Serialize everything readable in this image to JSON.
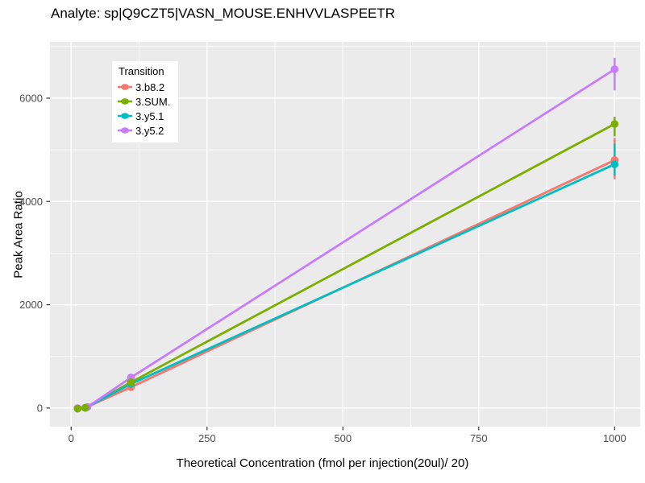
{
  "style": {
    "panel_bg": "#EBEBEB",
    "grid_color": "#FFFFFF",
    "tick_color": "#333333",
    "tick_label_color": "#4D4D4D",
    "text_color": "#000000",
    "legend_bg": "#FFFFFF"
  },
  "chart_data": {
    "type": "line",
    "title": "Analyte: sp|Q9CZT5|VASN_MOUSE.ENHVVLASPEETR",
    "xlabel": "Theoretical Concentration (fmol per injection(20ul)/ 20)",
    "ylabel": "Peak Area Ratio",
    "legend_title": "Transition",
    "xlim": [
      -39,
      1047
    ],
    "ylim": [
      -360,
      7090
    ],
    "x_major_ticks": [
      0,
      250,
      500,
      750,
      1000
    ],
    "x_minor_gridlines": [
      125,
      375,
      625,
      875
    ],
    "y_major_ticks": [
      0,
      2000,
      4000,
      6000
    ],
    "y_minor_gridlines": [
      1000,
      3000,
      5000,
      7000
    ],
    "grid": "on",
    "legend_position": "inside-top-left",
    "series": [
      {
        "name": "3.b8.2",
        "color": "#F8766D",
        "points": [
          [
            12,
            -5
          ],
          [
            26,
            5
          ],
          [
            110,
            405
          ],
          [
            1000,
            4800
          ]
        ],
        "error_bars": [
          {
            "x": 1000,
            "low": 4430,
            "high": 5230
          }
        ]
      },
      {
        "name": "3.SUM.",
        "color": "#7CAE00",
        "points": [
          [
            12,
            -12
          ],
          [
            26,
            8
          ],
          [
            110,
            500
          ],
          [
            1000,
            5500
          ]
        ],
        "error_bars": [
          {
            "x": 1000,
            "low": 5260,
            "high": 5640
          }
        ]
      },
      {
        "name": "3.y5.1",
        "color": "#00BFC4",
        "points": [
          [
            12,
            -8
          ],
          [
            26,
            3
          ],
          [
            110,
            467
          ],
          [
            1000,
            4720
          ]
        ],
        "error_bars": [
          {
            "x": 1000,
            "low": 4500,
            "high": 5120
          }
        ]
      },
      {
        "name": "3.y5.2",
        "color": "#C77CFF",
        "points": [
          [
            12,
            -3
          ],
          [
            30,
            20
          ],
          [
            110,
            592
          ],
          [
            1000,
            6560
          ]
        ],
        "error_bars": [
          {
            "x": 1000,
            "low": 6150,
            "high": 6780
          }
        ]
      }
    ],
    "point_draw_order": [
      0,
      2,
      3,
      1
    ]
  }
}
